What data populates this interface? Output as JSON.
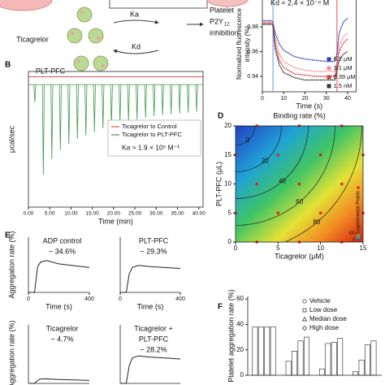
{
  "labels": {
    "b": "B",
    "d": "D",
    "e": "E",
    "f": "F"
  },
  "schematic": {
    "ligand": "Ticagrelor",
    "ka": "Ka",
    "kd": "Kd",
    "carrier": "PLT-PFC",
    "result_line1": "Platelet",
    "result_line2": "P2Y",
    "result_sub": "12",
    "result_line3": "inhibition"
  },
  "chart_data": [
    {
      "type": "line",
      "annotation": "Kd ≈ 2.4 × 10⁻⁸ M",
      "y_label": [
        "Normalized fluorescence",
        "intensity (%)"
      ],
      "x_label": "Time (s)",
      "x": [
        0,
        2,
        4,
        5,
        6,
        8,
        10,
        15,
        20,
        25,
        30,
        34,
        35,
        36,
        38,
        40
      ],
      "series": [
        {
          "name": "6.2 μM",
          "color": "#2a3fbf",
          "values": [
            0.985,
            0.985,
            0.985,
            0.984,
            0.975,
            0.966,
            0.961,
            0.956,
            0.954,
            0.953,
            0.952,
            0.952,
            0.958,
            0.975,
            0.984,
            0.987
          ]
        },
        {
          "name": "3.1 μM",
          "color": "#f08c9c",
          "values": [
            0.984,
            0.984,
            0.984,
            0.983,
            0.97,
            0.958,
            0.952,
            0.947,
            0.945,
            0.944,
            0.944,
            0.944,
            0.952,
            0.965,
            0.972,
            0.975
          ]
        },
        {
          "name": "0.39 μM",
          "color": "#d43a3a",
          "values": [
            0.983,
            0.983,
            0.983,
            0.982,
            0.966,
            0.953,
            0.947,
            0.942,
            0.941,
            0.94,
            0.94,
            0.94,
            0.948,
            0.96,
            0.967,
            0.97
          ]
        },
        {
          "name": "1.5 nM",
          "color": "#333333",
          "values": [
            0.982,
            0.982,
            0.982,
            0.981,
            0.962,
            0.949,
            0.943,
            0.939,
            0.937,
            0.937,
            0.937,
            0.937,
            0.944,
            0.953,
            0.958,
            0.96
          ]
        }
      ],
      "markers": [
        {
          "x": 5,
          "color": "#5a9ae6"
        },
        {
          "x": 35,
          "color": "#e05050"
        }
      ],
      "xlim": [
        0,
        44
      ],
      "ylim": [
        0.9275,
        1.005
      ],
      "xticks": [
        0,
        10,
        20,
        30,
        40
      ],
      "yticks": [
        0.94,
        0.96,
        0.98
      ],
      "legend": "lower right"
    },
    {
      "type": "itc",
      "y_label": "μcal/sec",
      "x_label": "Time (min)",
      "annotation": "Ka ≈ 1.9 × 10⁵ M⁻¹",
      "series": [
        {
          "name": "Ticagrelor to Control",
          "color": "#e05050",
          "kind": "line",
          "x": [
            0,
            41
          ],
          "values": [
            0.09,
            0.09
          ]
        },
        {
          "name": "Ticagrelor to PLT-PFC",
          "color": "#3a9a4a",
          "kind": "spikes",
          "x": [
            1.5,
            3.5,
            5.5,
            7.5,
            9.5,
            11.5,
            13.5,
            15.5,
            17.5,
            19.5,
            21.5,
            23.5,
            25.5,
            27.5,
            29.5,
            31.5,
            33.5,
            35.5,
            37.5,
            39.5
          ],
          "values": [
            -0.2,
            -1.03,
            -0.85,
            -0.75,
            -0.68,
            -0.62,
            -0.58,
            -0.54,
            -0.5,
            -0.47,
            -0.44,
            -0.42,
            -0.4,
            -0.38,
            -0.36,
            -0.35,
            -0.34,
            -0.33,
            -0.32,
            -0.31
          ]
        }
      ],
      "xlim": [
        0,
        41
      ],
      "ylim": [
        -1.4,
        0.15
      ],
      "xticks": [
        {
          "value": 0,
          "label": "0.00"
        },
        {
          "value": 5,
          "label": "5.00"
        },
        {
          "value": 10,
          "label": "10.00"
        },
        {
          "value": 15,
          "label": "15.00"
        },
        {
          "value": 20,
          "label": "20.00"
        },
        {
          "value": 25,
          "label": "25.00"
        },
        {
          "value": 30,
          "label": "30.00"
        },
        {
          "value": 35,
          "label": "35.00"
        },
        {
          "value": 40,
          "label": "40.00"
        }
      ]
    },
    {
      "type": "contour",
      "title": "Binding rate (%)",
      "x_label": "Ticagrelor (μM)",
      "y_label": "PLT-PFC (μL)",
      "xlim": [
        0,
        15
      ],
      "ylim": [
        0,
        20
      ],
      "xticks": [
        0,
        5,
        10,
        15
      ],
      "yticks": [
        0,
        5,
        10,
        15,
        20
      ],
      "contour_levels": [
        0,
        20,
        40,
        60,
        80
      ],
      "points": {
        "name": "Experimental Points",
        "color": "#e02020",
        "x": [
          2.5,
          7.5,
          12.5,
          0,
          5,
          10,
          15,
          2.5,
          7.5,
          12.5,
          0,
          5,
          10,
          15,
          2.5,
          7.5,
          12.5
        ],
        "y": [
          20,
          20,
          20,
          15,
          15,
          15,
          15,
          10,
          10,
          10,
          5,
          5,
          5,
          5,
          0,
          0,
          0
        ]
      },
      "colorbar": [
        0,
        100
      ]
    },
    {
      "type": "line",
      "title": [
        "ADP control",
        "~ 34.6%"
      ],
      "x_label": "Time (s)",
      "y_label": "Aggregation rate (%)",
      "x": [
        0,
        40,
        60,
        80,
        120,
        200,
        300,
        400
      ],
      "values": [
        0,
        0,
        28,
        33,
        34.6,
        31,
        29,
        27
      ],
      "color": "#222222",
      "xlim": [
        0,
        400
      ],
      "ylim": [
        0,
        60
      ],
      "xticks": [
        0,
        400
      ]
    },
    {
      "type": "line",
      "title": [
        "PLT-PFC",
        "~ 29.3%"
      ],
      "x_label": "Time (s)",
      "x": [
        0,
        40,
        60,
        80,
        120,
        200,
        300,
        400
      ],
      "values": [
        0,
        0,
        20,
        27,
        29.3,
        28,
        27,
        26
      ],
      "color": "#222222",
      "xlim": [
        0,
        400
      ],
      "ylim": [
        0,
        60
      ],
      "xticks": [
        0,
        400
      ]
    },
    {
      "type": "line",
      "title": [
        "Ticagrelor",
        "~ 4.7%"
      ],
      "y_label": "Aggregation rate (%)",
      "x": [
        0,
        40,
        60,
        80,
        120,
        200,
        300,
        400
      ],
      "values": [
        0,
        0,
        3,
        4.5,
        4.7,
        4,
        3.5,
        3
      ],
      "color": "#222222",
      "xlim": [
        0,
        400
      ],
      "ylim": [
        0,
        60
      ]
    },
    {
      "type": "line",
      "title": [
        "Ticagrelor +",
        "PLT-PFC",
        "~ 28.2%"
      ],
      "x": [
        0,
        40,
        60,
        80,
        120,
        200,
        300,
        400
      ],
      "values": [
        0,
        0,
        18,
        26,
        28.2,
        27,
        26,
        25
      ],
      "color": "#222222",
      "xlim": [
        0,
        400
      ],
      "ylim": [
        0,
        60
      ]
    },
    {
      "type": "bar",
      "y_label": "Platelet aggregation rate (%)",
      "categories": [
        null,
        null,
        null,
        null
      ],
      "series": [
        {
          "name": "Vehicle",
          "marker": "circle",
          "color": "#ffffff",
          "values": [
            38,
            11,
            5,
            3
          ]
        },
        {
          "name": "Low dose",
          "marker": "square",
          "color": "#ffffff",
          "values": [
            38,
            19,
            25,
            12
          ]
        },
        {
          "name": "Median dose",
          "marker": "triangle",
          "color": "#ffffff",
          "values": [
            38,
            27,
            26,
            24
          ]
        },
        {
          "name": "High dose",
          "marker": "diamond",
          "color": "#ffffff",
          "values": [
            38,
            30,
            29,
            27
          ]
        }
      ],
      "ylim": [
        0,
        62
      ],
      "yticks": [
        0,
        20,
        40,
        60
      ]
    }
  ]
}
